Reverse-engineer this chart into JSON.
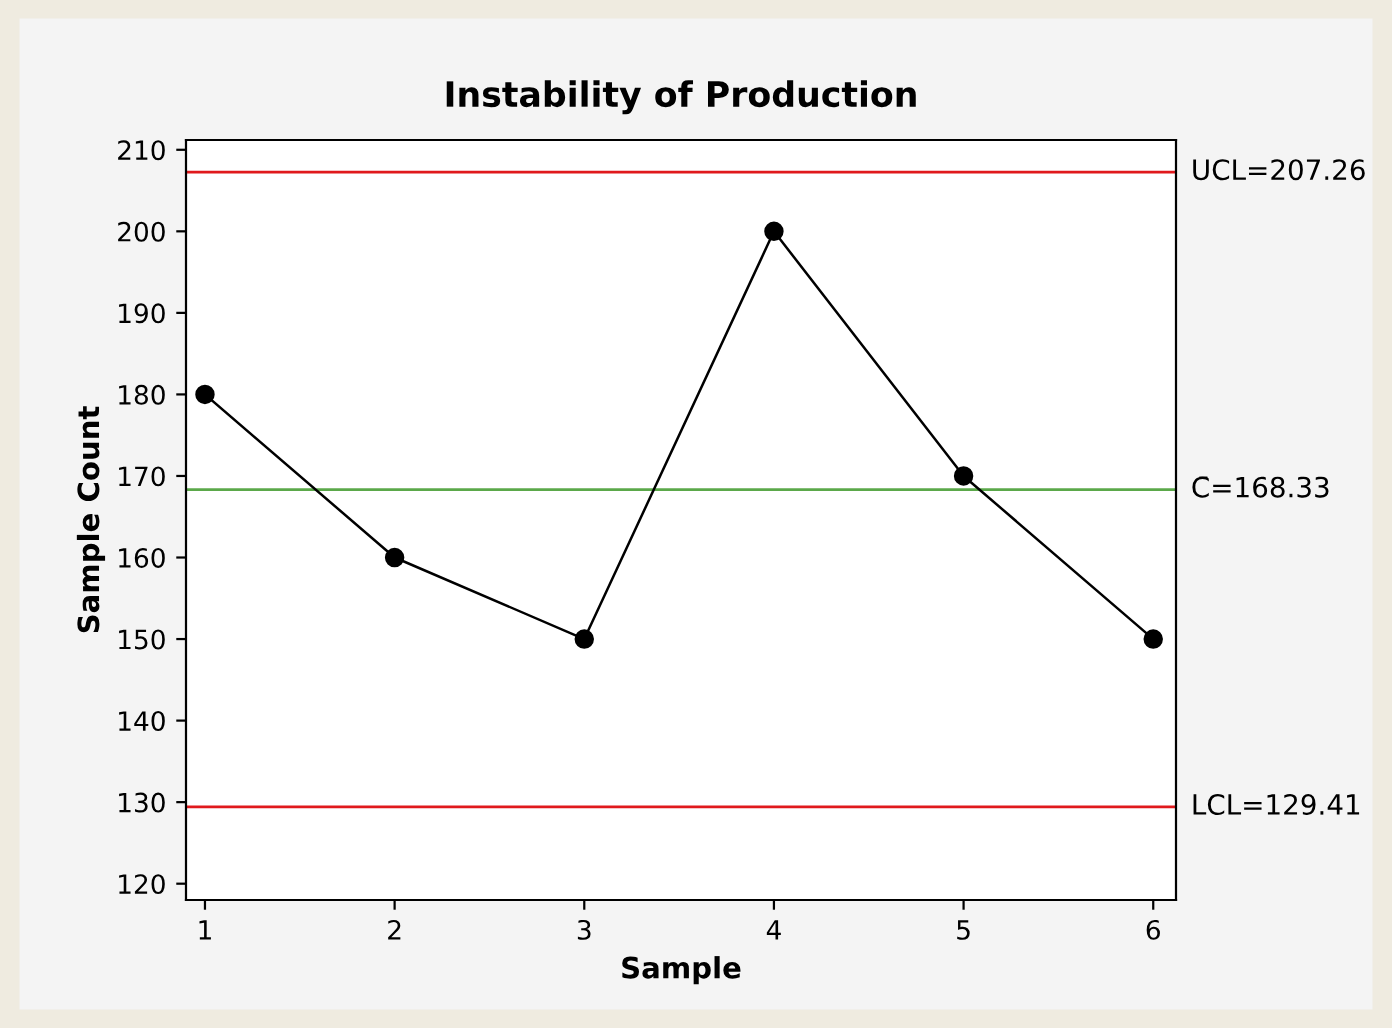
{
  "chart_data": {
    "type": "line",
    "title": "Instability of Production",
    "xlabel": "Sample",
    "ylabel": "Sample Count",
    "x": [
      1,
      2,
      3,
      4,
      5,
      6
    ],
    "series": [
      {
        "color": "#000000",
        "values": [
          180,
          160,
          150,
          200,
          170,
          150
        ]
      }
    ],
    "marker": "circle",
    "line_style": "solid",
    "xlim": [
      0.9,
      6.12
    ],
    "xticks": [
      1,
      2,
      3,
      4,
      5,
      6
    ],
    "ylim": [
      118,
      211.2
    ],
    "yticks": [
      120,
      130,
      140,
      150,
      160,
      170,
      180,
      190,
      200,
      210
    ],
    "ref_lines": [
      {
        "axis": "y",
        "value": 207.26,
        "label": "UCL=207.26",
        "color": "#e0191c"
      },
      {
        "axis": "y",
        "value": 168.33,
        "label": "C̄=168.33",
        "color": "#5ba84a"
      },
      {
        "axis": "y",
        "value": 129.41,
        "label": "LCL=129.41",
        "color": "#e0191c"
      }
    ],
    "grid": false,
    "legend": false
  }
}
